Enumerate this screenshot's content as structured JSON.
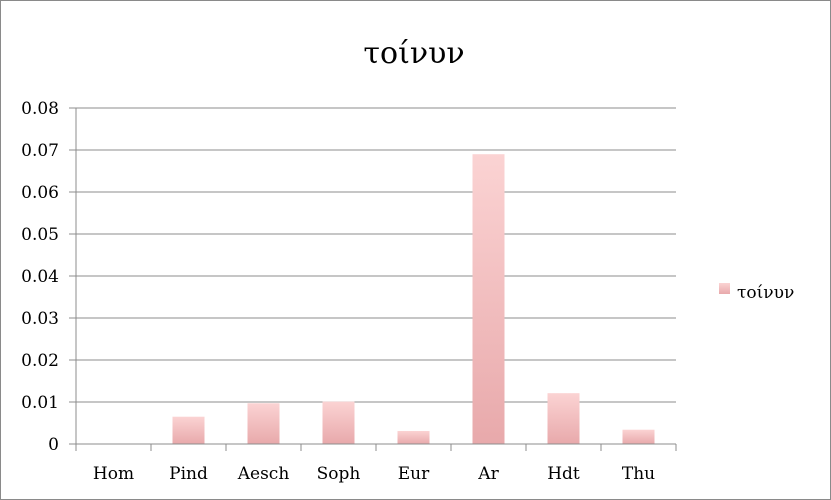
{
  "chart_data": {
    "type": "bar",
    "title": "τοίνυν",
    "xlabel": "",
    "ylabel": "",
    "categories": [
      "Hom",
      "Pind",
      "Aesch",
      "Soph",
      "Eur",
      "Ar",
      "Hdt",
      "Thu"
    ],
    "series": [
      {
        "name": "τοίνυν",
        "values": [
          0.0,
          0.0065,
          0.0097,
          0.0101,
          0.0031,
          0.069,
          0.0121,
          0.0034
        ]
      }
    ],
    "ylim": [
      0,
      0.08
    ],
    "yticks": [
      "0",
      "0.01",
      "0.02",
      "0.03",
      "0.04",
      "0.05",
      "0.06",
      "0.07",
      "0.08"
    ],
    "grid": true,
    "legend_position": "right",
    "colors": {
      "bar_top": "#fbd3d3",
      "bar_bottom": "#e8a9ab",
      "gridline": "#8c8c8c",
      "axis": "#8c8c8c"
    }
  }
}
